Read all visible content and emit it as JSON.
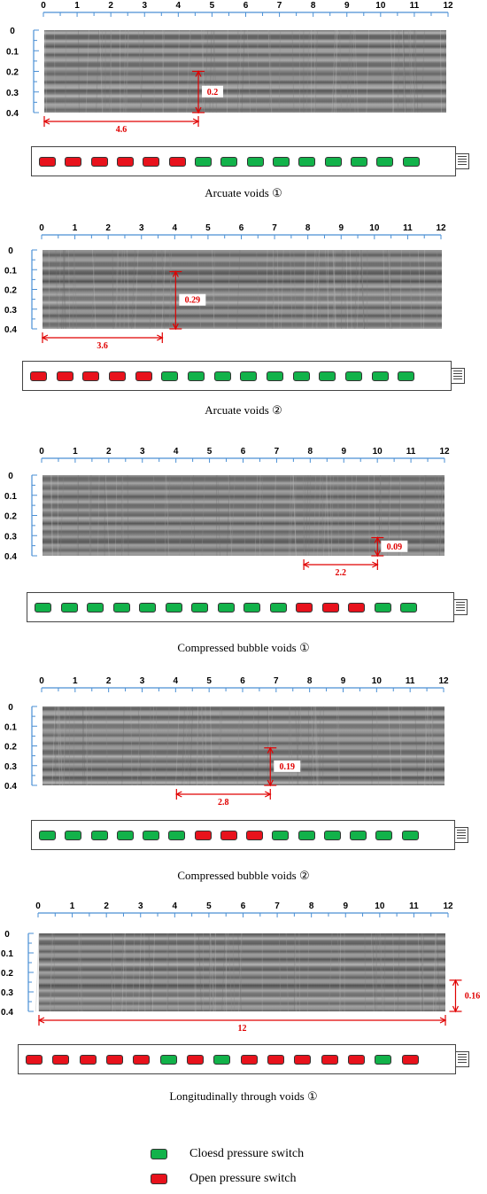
{
  "colors": {
    "closed": "#12b24a",
    "open": "#e8121c",
    "axis": "#4a8fd4",
    "annotation": "#e00000"
  },
  "x_ticks": [
    "0",
    "1",
    "2",
    "3",
    "4",
    "5",
    "6",
    "7",
    "8",
    "9",
    "10",
    "11",
    "12"
  ],
  "y_ticks": [
    "0",
    "0.1",
    "0.2",
    "0.3",
    "0.4"
  ],
  "panels": [
    {
      "caption": "Arcuate voids ①",
      "horizontal_measure": {
        "from": 0,
        "to": 4.6,
        "label": "4.6"
      },
      "vertical_measure": {
        "x": 4.6,
        "from": 0.2,
        "to": 0.4,
        "label": "0.2"
      },
      "switches": [
        "open",
        "open",
        "open",
        "open",
        "open",
        "open",
        "closed",
        "closed",
        "closed",
        "closed",
        "closed",
        "closed",
        "closed",
        "closed",
        "closed"
      ]
    },
    {
      "caption": "Arcuate voids ②",
      "horizontal_measure": {
        "from": 0,
        "to": 3.6,
        "label": "3.6"
      },
      "vertical_measure": {
        "x": 4.0,
        "from": 0.11,
        "to": 0.4,
        "label": "0.29"
      },
      "switches": [
        "open",
        "open",
        "open",
        "open",
        "open",
        "closed",
        "closed",
        "closed",
        "closed",
        "closed",
        "closed",
        "closed",
        "closed",
        "closed",
        "closed"
      ]
    },
    {
      "caption": "Compressed bubble voids ①",
      "horizontal_measure": {
        "from": 7.8,
        "to": 10.0,
        "label": "2.2"
      },
      "vertical_measure": {
        "x": 10.0,
        "from": 0.31,
        "to": 0.4,
        "label": "0.09"
      },
      "switches": [
        "closed",
        "closed",
        "closed",
        "closed",
        "closed",
        "closed",
        "closed",
        "closed",
        "closed",
        "closed",
        "open",
        "open",
        "open",
        "closed",
        "closed"
      ]
    },
    {
      "caption": "Compressed bubble voids ②",
      "horizontal_measure": {
        "from": 4.0,
        "to": 6.8,
        "label": "2.8"
      },
      "vertical_measure": {
        "x": 6.8,
        "from": 0.21,
        "to": 0.4,
        "label": "0.19"
      },
      "switches": [
        "closed",
        "closed",
        "closed",
        "closed",
        "closed",
        "closed",
        "open",
        "open",
        "open",
        "closed",
        "closed",
        "closed",
        "closed",
        "closed",
        "closed"
      ]
    },
    {
      "caption": "Longitudinally through voids ①",
      "horizontal_measure": {
        "from": 0,
        "to": 12,
        "label": "12"
      },
      "vertical_measure": {
        "x": 12.3,
        "from": 0.24,
        "to": 0.4,
        "label": "0.16"
      },
      "switches": [
        "open",
        "open",
        "open",
        "open",
        "open",
        "closed",
        "open",
        "closed",
        "open",
        "open",
        "open",
        "open",
        "open",
        "closed",
        "open"
      ]
    }
  ],
  "legend": [
    {
      "state": "closed",
      "label": "Cloesd pressure switch"
    },
    {
      "state": "open",
      "label": "Open pressure switch"
    }
  ]
}
